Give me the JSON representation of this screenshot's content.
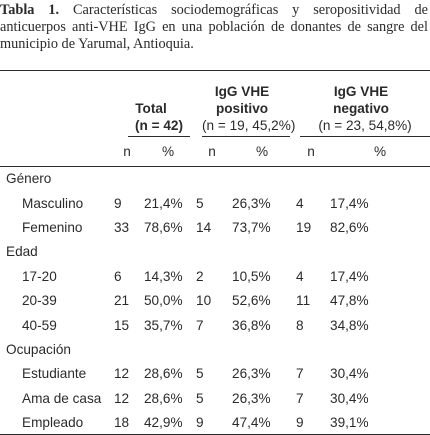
{
  "caption": {
    "label": "Tabla 1.",
    "text": " Características sociodemográficas y seropositividad de anticuerpos anti-VHE IgG en una población de donantes de sangre del municipio de Yarumal, Antioquia."
  },
  "table": {
    "groups": [
      {
        "line1": "Total",
        "line2": "(n = 42)"
      },
      {
        "line1": "IgG VHE",
        "line2": "positivo",
        "line3": "(n = 19, 45,2%)"
      },
      {
        "line1": "IgG VHE",
        "line2": "negativo",
        "line3": "(n = 23, 54,8%)"
      }
    ],
    "subheaders": [
      "n",
      "%",
      "n",
      "%",
      "n",
      "%"
    ],
    "sections": [
      {
        "label": "Género",
        "rows": [
          {
            "label": "Masculino",
            "cells": [
              "9",
              "21,4%",
              "5",
              "26,3%",
              "4",
              "17,4%"
            ]
          },
          {
            "label": "Femenino",
            "cells": [
              "33",
              "78,6%",
              "14",
              "73,7%",
              "19",
              "82,6%"
            ]
          }
        ]
      },
      {
        "label": "Edad",
        "rows": [
          {
            "label": "17-20",
            "cells": [
              "6",
              "14,3%",
              "2",
              "10,5%",
              "4",
              "17,4%"
            ]
          },
          {
            "label": "20-39",
            "cells": [
              "21",
              "50,0%",
              "10",
              "52,6%",
              "11",
              "47,8%"
            ]
          },
          {
            "label": "40-59",
            "cells": [
              "15",
              "35,7%",
              "7",
              "36,8%",
              "8",
              "34,8%"
            ]
          }
        ]
      },
      {
        "label": "Ocupación",
        "rows": [
          {
            "label": "Estudiante",
            "cells": [
              "12",
              "28,6%",
              "5",
              "26,3%",
              "7",
              "30,4%"
            ]
          },
          {
            "label": "Ama de casa",
            "cells": [
              "12",
              "28,6%",
              "5",
              "26,3%",
              "7",
              "30,4%"
            ]
          },
          {
            "label": "Empleado",
            "cells": [
              "18",
              "42,9%",
              "9",
              "47,4%",
              "9",
              "39,1%"
            ]
          }
        ]
      }
    ]
  }
}
